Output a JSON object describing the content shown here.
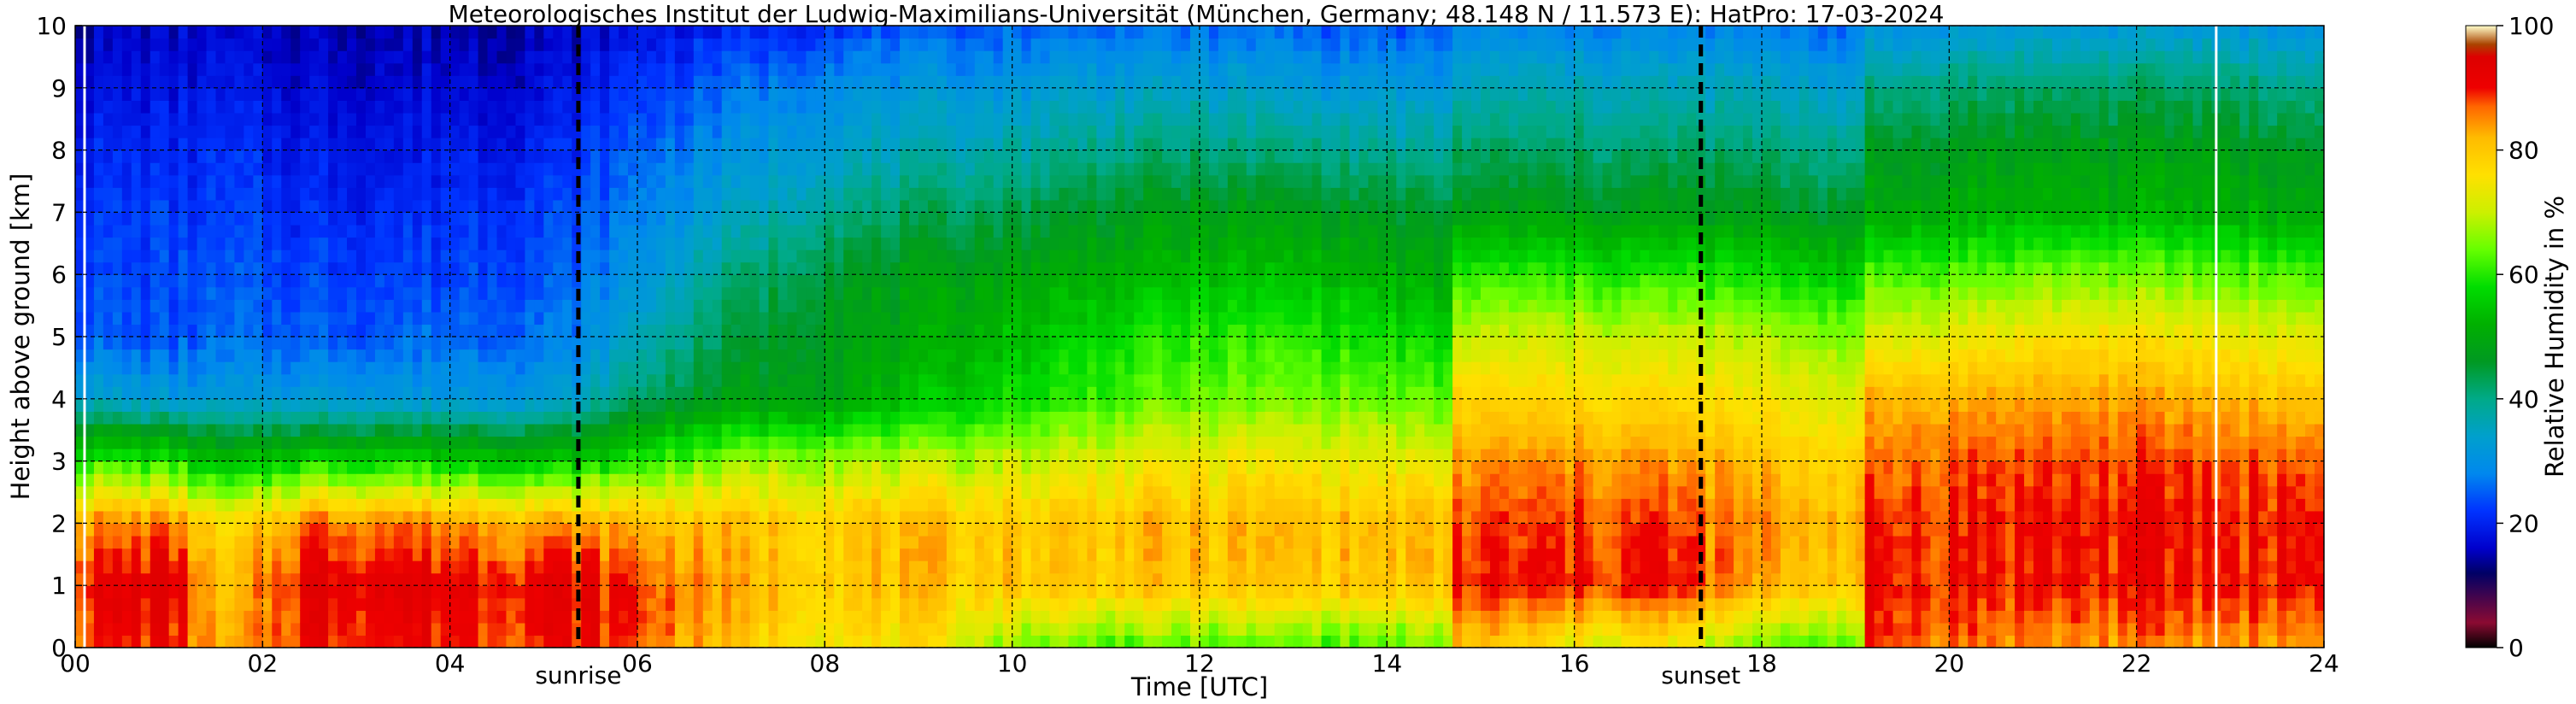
{
  "chart_data": {
    "type": "heatmap",
    "title": "Meteorologisches Institut der Ludwig-Maximilians-Universität (München, Germany; 48.148 N / 11.573 E):    HatPro: 17-03-2024",
    "xlabel": "Time [UTC]",
    "ylabel": "Height above ground [km]",
    "colorbar_label": "Relative Humidity in %",
    "xlim": [
      0,
      24
    ],
    "ylim": [
      0,
      10
    ],
    "clim": [
      0,
      100
    ],
    "x_ticks": [
      0,
      2,
      4,
      6,
      8,
      10,
      12,
      14,
      16,
      18,
      20,
      22,
      24
    ],
    "x_tick_labels": [
      "00",
      "02",
      "04",
      "06",
      "08",
      "10",
      "12",
      "14",
      "16",
      "18",
      "20",
      "22",
      "24"
    ],
    "y_ticks": [
      0,
      1,
      2,
      3,
      4,
      5,
      6,
      7,
      8,
      9,
      10
    ],
    "y_tick_labels": [
      "0",
      "1",
      "2",
      "3",
      "4",
      "5",
      "6",
      "7",
      "8",
      "9",
      "10"
    ],
    "colorbar_ticks": [
      0,
      20,
      40,
      60,
      80,
      100
    ],
    "colorbar_tick_labels": [
      "0",
      "20",
      "40",
      "60",
      "80",
      "100"
    ],
    "grid": true,
    "events": [
      {
        "name": "sunrise",
        "time": 5.37
      },
      {
        "name": "sunset",
        "time": 17.35
      }
    ],
    "data_gaps": [
      0.1,
      22.85
    ],
    "colormap": [
      {
        "value": 0,
        "color": "#000000"
      },
      {
        "value": 4,
        "color": "#8b0a32"
      },
      {
        "value": 12,
        "color": "#000066"
      },
      {
        "value": 16,
        "color": "#0000cc"
      },
      {
        "value": 22,
        "color": "#0033ff"
      },
      {
        "value": 28,
        "color": "#0088ee"
      },
      {
        "value": 34,
        "color": "#00a0cc"
      },
      {
        "value": 40,
        "color": "#00aa88"
      },
      {
        "value": 46,
        "color": "#009922"
      },
      {
        "value": 52,
        "color": "#00b000"
      },
      {
        "value": 58,
        "color": "#00dd00"
      },
      {
        "value": 64,
        "color": "#66ff00"
      },
      {
        "value": 70,
        "color": "#ccf000"
      },
      {
        "value": 76,
        "color": "#ffe000"
      },
      {
        "value": 82,
        "color": "#ffbb00"
      },
      {
        "value": 87,
        "color": "#ff6600"
      },
      {
        "value": 90,
        "color": "#ee0000"
      },
      {
        "value": 95,
        "color": "#dd0000"
      },
      {
        "value": 97,
        "color": "#aa4400"
      },
      {
        "value": 100,
        "color": "#ffffcc"
      }
    ],
    "rh_profiles": [
      {
        "time": 0.0,
        "rh": [
          88,
          91,
          84,
          60,
          35,
          25,
          23,
          22,
          20,
          18,
          15
        ]
      },
      {
        "time": 1.0,
        "rh": [
          90,
          94,
          86,
          60,
          32,
          24,
          23,
          22,
          20,
          18,
          16
        ]
      },
      {
        "time": 1.6,
        "rh": [
          80,
          78,
          74,
          52,
          32,
          25,
          24,
          22,
          21,
          18,
          16
        ]
      },
      {
        "time": 2.5,
        "rh": [
          91,
          93,
          87,
          58,
          32,
          25,
          23,
          21,
          19,
          17,
          15
        ]
      },
      {
        "time": 3.5,
        "rh": [
          90,
          93,
          86,
          58,
          32,
          25,
          23,
          21,
          19,
          17,
          15
        ]
      },
      {
        "time": 4.5,
        "rh": [
          89,
          92,
          84,
          56,
          32,
          26,
          24,
          22,
          20,
          17,
          15
        ]
      },
      {
        "time": 5.3,
        "rh": [
          90,
          92,
          83,
          55,
          33,
          27,
          25,
          23,
          21,
          18,
          16
        ]
      },
      {
        "time": 6.0,
        "rh": [
          88,
          89,
          82,
          60,
          42,
          36,
          31,
          28,
          25,
          22,
          18
        ]
      },
      {
        "time": 7.0,
        "rh": [
          80,
          82,
          80,
          66,
          48,
          44,
          40,
          34,
          30,
          26,
          20
        ]
      },
      {
        "time": 8.0,
        "rh": [
          76,
          80,
          80,
          68,
          50,
          48,
          46,
          40,
          34,
          30,
          22
        ]
      },
      {
        "time": 9.0,
        "rh": [
          75,
          80,
          80,
          68,
          54,
          50,
          48,
          42,
          36,
          31,
          24
        ]
      },
      {
        "time": 10.0,
        "rh": [
          66,
          80,
          80,
          70,
          58,
          54,
          50,
          44,
          38,
          32,
          25
        ]
      },
      {
        "time": 11.0,
        "rh": [
          62,
          80,
          80,
          72,
          62,
          58,
          52,
          46,
          40,
          34,
          26
        ]
      },
      {
        "time": 12.0,
        "rh": [
          62,
          80,
          81,
          74,
          64,
          60,
          54,
          48,
          41,
          34,
          26
        ]
      },
      {
        "time": 13.0,
        "rh": [
          62,
          80,
          81,
          74,
          65,
          60,
          54,
          48,
          40,
          33,
          25
        ]
      },
      {
        "time": 14.0,
        "rh": [
          62,
          80,
          81,
          73,
          64,
          58,
          52,
          46,
          39,
          32,
          24
        ]
      },
      {
        "time": 14.7,
        "rh": [
          64,
          80,
          80,
          72,
          62,
          56,
          50,
          44,
          38,
          31,
          24
        ]
      },
      {
        "time": 15.0,
        "rh": [
          80,
          89,
          88,
          84,
          78,
          70,
          60,
          48,
          42,
          36,
          28
        ]
      },
      {
        "time": 16.0,
        "rh": [
          72,
          90,
          88,
          84,
          77,
          70,
          60,
          48,
          42,
          36,
          28
        ]
      },
      {
        "time": 17.0,
        "rh": [
          74,
          90,
          88,
          84,
          77,
          70,
          60,
          48,
          42,
          36,
          28
        ]
      },
      {
        "time": 18.0,
        "rh": [
          62,
          82,
          84,
          80,
          74,
          68,
          58,
          47,
          41,
          35,
          27
        ]
      },
      {
        "time": 19.1,
        "rh": [
          64,
          80,
          82,
          78,
          72,
          66,
          56,
          46,
          40,
          34,
          26
        ]
      },
      {
        "time": 19.3,
        "rh": [
          88,
          90,
          89,
          86,
          82,
          72,
          62,
          50,
          46,
          40,
          30
        ]
      },
      {
        "time": 20.5,
        "rh": [
          85,
          90,
          90,
          88,
          83,
          74,
          64,
          52,
          48,
          42,
          32
        ]
      },
      {
        "time": 21.5,
        "rh": [
          84,
          90,
          90,
          88,
          84,
          76,
          65,
          52,
          48,
          42,
          32
        ]
      },
      {
        "time": 22.8,
        "rh": [
          84,
          90,
          90,
          88,
          82,
          74,
          64,
          52,
          48,
          42,
          32
        ]
      },
      {
        "time": 24.0,
        "rh": [
          84,
          90,
          90,
          87,
          80,
          72,
          62,
          50,
          46,
          40,
          30
        ]
      }
    ],
    "rh_profile_heights": [
      0,
      1,
      2,
      3,
      4,
      5,
      6,
      7,
      8,
      9,
      10
    ]
  }
}
